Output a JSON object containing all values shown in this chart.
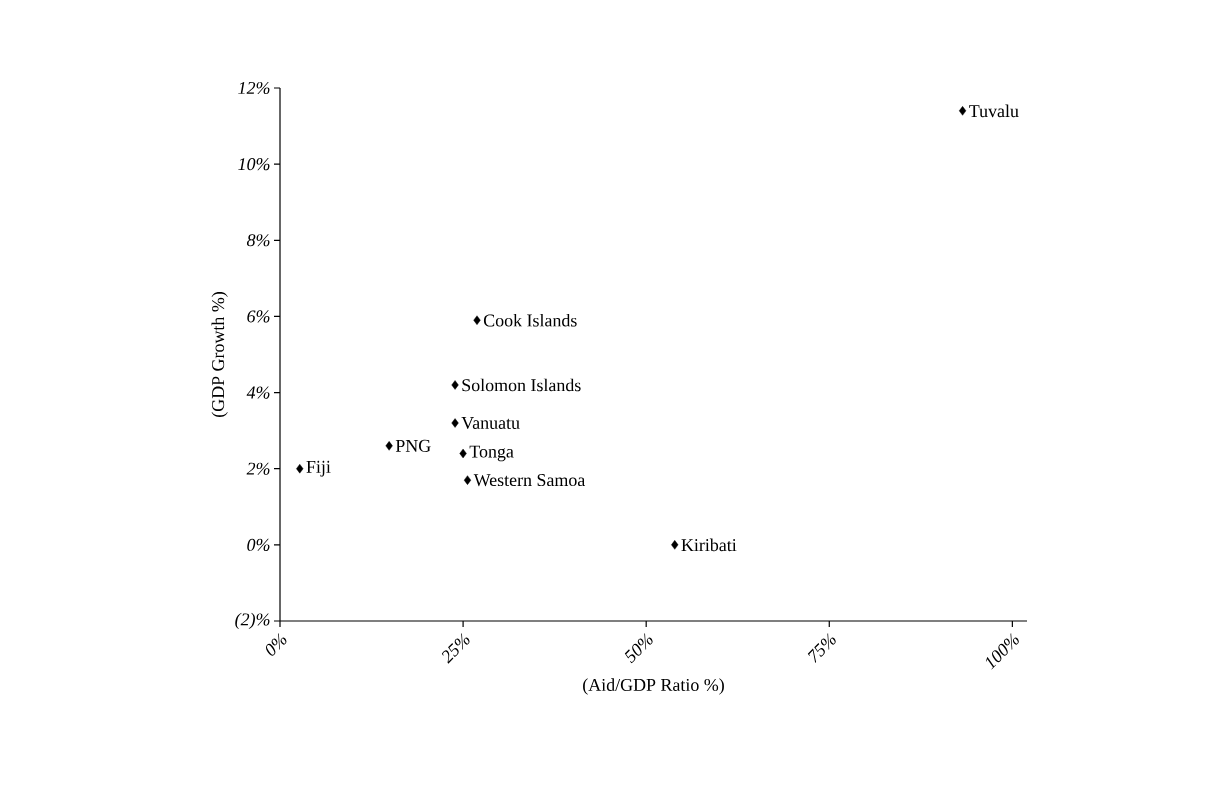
{
  "chart_data": {
    "type": "scatter",
    "xlabel": "(Aid/GDP Ratio %)",
    "ylabel": "(GDP Growth %)",
    "xlim": [
      0,
      102
    ],
    "ylim": [
      -2,
      12
    ],
    "xticks": [
      {
        "value": 0,
        "label": "0%"
      },
      {
        "value": 25,
        "label": "25%"
      },
      {
        "value": 50,
        "label": "50%"
      },
      {
        "value": 75,
        "label": "75%"
      },
      {
        "value": 100,
        "label": "100%"
      }
    ],
    "yticks": [
      {
        "value": -2,
        "label": "(2)%"
      },
      {
        "value": 0,
        "label": "0%"
      },
      {
        "value": 2,
        "label": "2%"
      },
      {
        "value": 4,
        "label": "4%"
      },
      {
        "value": 6,
        "label": "6%"
      },
      {
        "value": 8,
        "label": "8%"
      },
      {
        "value": 10,
        "label": "10%"
      },
      {
        "value": 12,
        "label": "12%"
      }
    ],
    "marker": "diamond",
    "grid": false,
    "series": [
      {
        "color": "#000000",
        "x": [
          93.2,
          26.9,
          23.9,
          23.9,
          14.9,
          25.0,
          25.6,
          2.7,
          53.9
        ],
        "values": [
          11.4,
          5.9,
          4.2,
          3.2,
          2.6,
          2.4,
          1.7,
          2.0,
          0.0
        ],
        "value_labels": [
          "Tuvalu",
          "Cook Islands",
          "Solomon Islands",
          "Vanuatu",
          "PNG",
          "Tonga",
          "Western Samoa",
          "Fiji",
          "Kiribati"
        ]
      }
    ]
  }
}
